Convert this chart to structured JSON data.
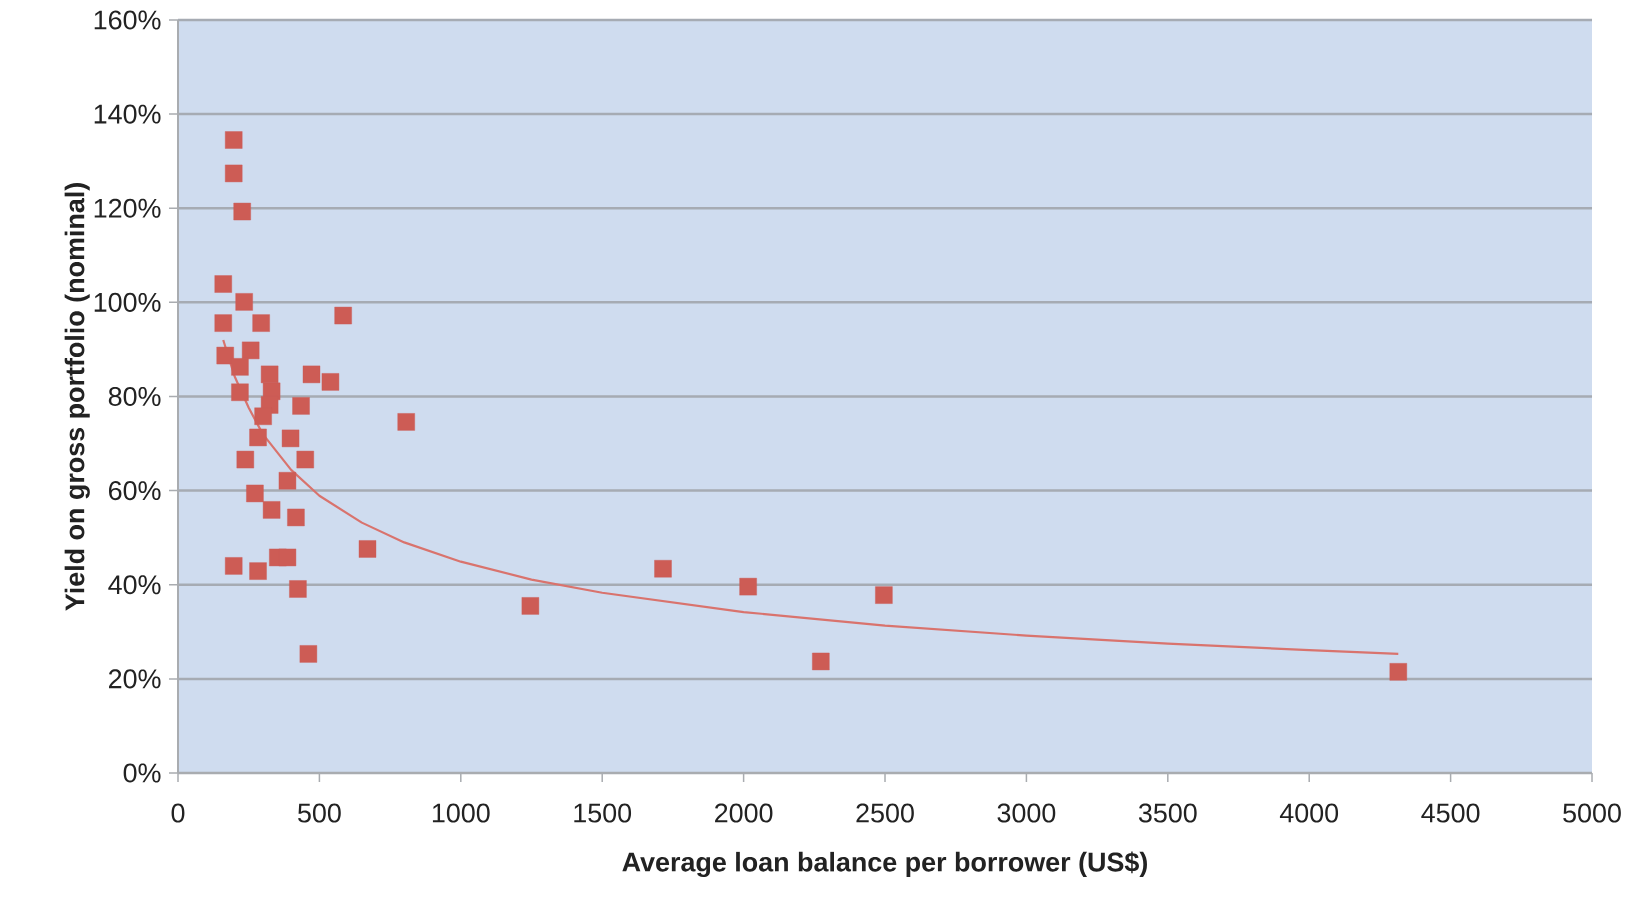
{
  "chart_data": {
    "type": "scatter",
    "xlabel": "Average loan balance per borrower (US$)",
    "ylabel": "Yield on gross portfolio (nominal)",
    "xlim": [
      0,
      5000
    ],
    "xticks": [
      0,
      500,
      1000,
      1500,
      2000,
      2500,
      3000,
      3500,
      4000,
      4500,
      5000
    ],
    "ylim": [
      0,
      160
    ],
    "yticks": [
      {
        "value": 0,
        "label": "0%"
      },
      {
        "value": 20,
        "label": "20%"
      },
      {
        "value": 40,
        "label": "40%"
      },
      {
        "value": 60,
        "label": "60%"
      },
      {
        "value": 80,
        "label": "80%"
      },
      {
        "value": 100,
        "label": "100%"
      },
      {
        "value": 120,
        "label": "120%"
      },
      {
        "value": 140,
        "label": "140%"
      },
      {
        "value": 160,
        "label": "160%"
      }
    ],
    "grid": "y",
    "marker": "square",
    "series": [
      {
        "color": "#cd5c55",
        "x": [
          197,
          197,
          227,
          160,
          234,
          160,
          294,
          584,
          167,
          257,
          219,
          324,
          472,
          539,
          219,
          331,
          324,
          435,
          807,
          301,
          283,
          398,
          238,
          450,
          387,
          272,
          331,
          417,
          670,
          197,
          283,
          353,
          387,
          424,
          461,
          1246,
          1715,
          2016,
          2496,
          2273,
          4315
        ],
        "values": [
          134.5,
          127.4,
          119.3,
          103.9,
          100.1,
          95.6,
          95.6,
          97.2,
          88.7,
          89.8,
          86.3,
          84.7,
          84.7,
          83.1,
          80.9,
          81.1,
          78.2,
          78,
          74.6,
          75.8,
          71.3,
          71.1,
          66.6,
          66.6,
          62.1,
          59.4,
          55.9,
          54.3,
          47.6,
          44,
          42.9,
          45.8,
          45.8,
          39.1,
          25.3,
          35.5,
          43.4,
          39.6,
          37.8,
          23.7,
          21.5
        ]
      },
      {
        "type": "line",
        "color": "#d9736d",
        "marker": "none",
        "x": [
          160,
          200,
          250,
          300,
          400,
          500,
          650,
          800,
          1000,
          1250,
          1500,
          2000,
          2500,
          3000,
          3500,
          4000,
          4315
        ],
        "values": [
          92,
          84.3,
          77.6,
          72,
          64.4,
          58.9,
          53.2,
          49,
          44.9,
          41.1,
          38.3,
          34.2,
          31.3,
          29.2,
          27.5,
          26.1,
          25.3
        ]
      }
    ]
  }
}
